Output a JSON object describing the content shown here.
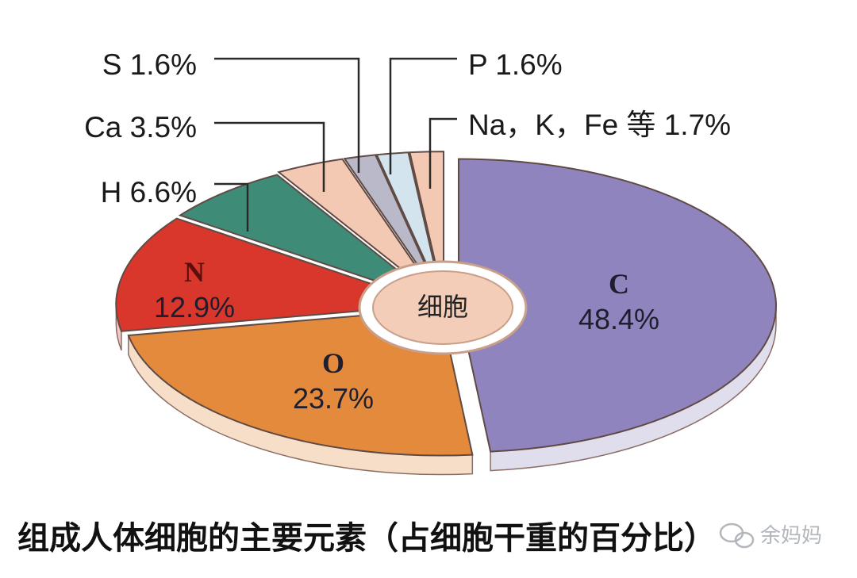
{
  "chart_data": {
    "type": "pie",
    "title": "",
    "center_label": "细胞",
    "caption": "组成人体细胞的主要元素（占细胞干重的百分比）",
    "slices": [
      {
        "symbol": "C",
        "label": "C",
        "value": 48.4,
        "display": "48.4%",
        "color": "#8f84bd"
      },
      {
        "symbol": "O",
        "label": "O",
        "value": 23.7,
        "display": "23.7%",
        "color": "#e38a3c"
      },
      {
        "symbol": "N",
        "label": "N",
        "value": 12.9,
        "display": "12.9%",
        "color": "#d9362c"
      },
      {
        "symbol": "H",
        "label": "H",
        "value": 6.6,
        "display": "H 6.6%",
        "color": "#3e8c77"
      },
      {
        "symbol": "Ca",
        "label": "Ca",
        "value": 3.5,
        "display": "Ca 3.5%",
        "color": "#f3c9b3"
      },
      {
        "symbol": "S",
        "label": "S",
        "value": 1.6,
        "display": "S 1.6%",
        "color": "#b9b9c9"
      },
      {
        "symbol": "P",
        "label": "P",
        "value": 1.6,
        "display": "P 1.6%",
        "color": "#d3e4ef"
      },
      {
        "symbol": "Na, K, Fe",
        "label": "Na，K，Fe 等",
        "value": 1.7,
        "display": "Na，K，Fe 等 1.7%",
        "color": "#f3c9b3"
      }
    ]
  },
  "watermark": {
    "text": "余妈妈",
    "icon": "wechat-icon"
  }
}
